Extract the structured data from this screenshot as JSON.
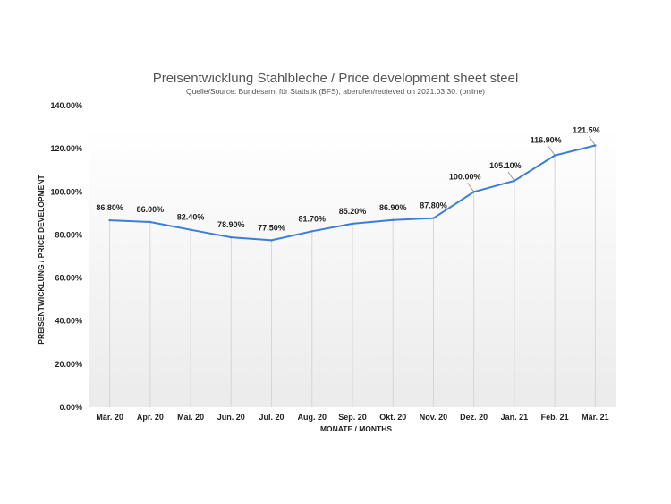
{
  "chart_data": {
    "type": "line",
    "title": "Preisentwicklung Stahlbleche / Price development sheet steel",
    "subtitle": "Quelle/Source: Bundesamt für Statistik (BFS), aberufen/retrieved on 2021.03.30. (online)",
    "xlabel": "MONATE / MONTHS",
    "ylabel": "PREISENTWICKLUNG / PRICE DEVELOPMENT",
    "categories": [
      "Mär. 20",
      "Apr. 20",
      "Mai. 20",
      "Jun. 20",
      "Jul. 20",
      "Aug. 20",
      "Sep. 20",
      "Okt. 20",
      "Nov. 20",
      "Dez. 20",
      "Jan. 21",
      "Feb. 21",
      "Mär. 21"
    ],
    "series": [
      {
        "name": "Price development",
        "values": [
          86.8,
          86.0,
          82.4,
          78.9,
          77.5,
          81.7,
          85.2,
          86.9,
          87.8,
          100.0,
          105.1,
          116.9,
          121.5
        ],
        "data_labels": [
          "86.80%",
          "86.00%",
          "82.40%",
          "78.90%",
          "77.50%",
          "81.70%",
          "85.20%",
          "86.90%",
          "87.80%",
          "100.00%",
          "105.10%",
          "116.90%",
          "121.5%"
        ],
        "color": "#3b7dd8"
      }
    ],
    "ylim": [
      0,
      140
    ],
    "yticks": [
      0,
      20,
      40,
      60,
      80,
      100,
      120,
      140
    ],
    "ytick_labels": [
      "0.00%",
      "20.00%",
      "40.00%",
      "60.00%",
      "80.00%",
      "100.00%",
      "120.00%",
      "140.00%"
    ],
    "grid": "vertical drop lines at each category",
    "legend": "none",
    "colors": {
      "line": "#3b7dd8",
      "droplines": "#d6d6d6",
      "plot_bg_top": "#ffffff",
      "plot_bg_bottom": "#ececec"
    }
  }
}
